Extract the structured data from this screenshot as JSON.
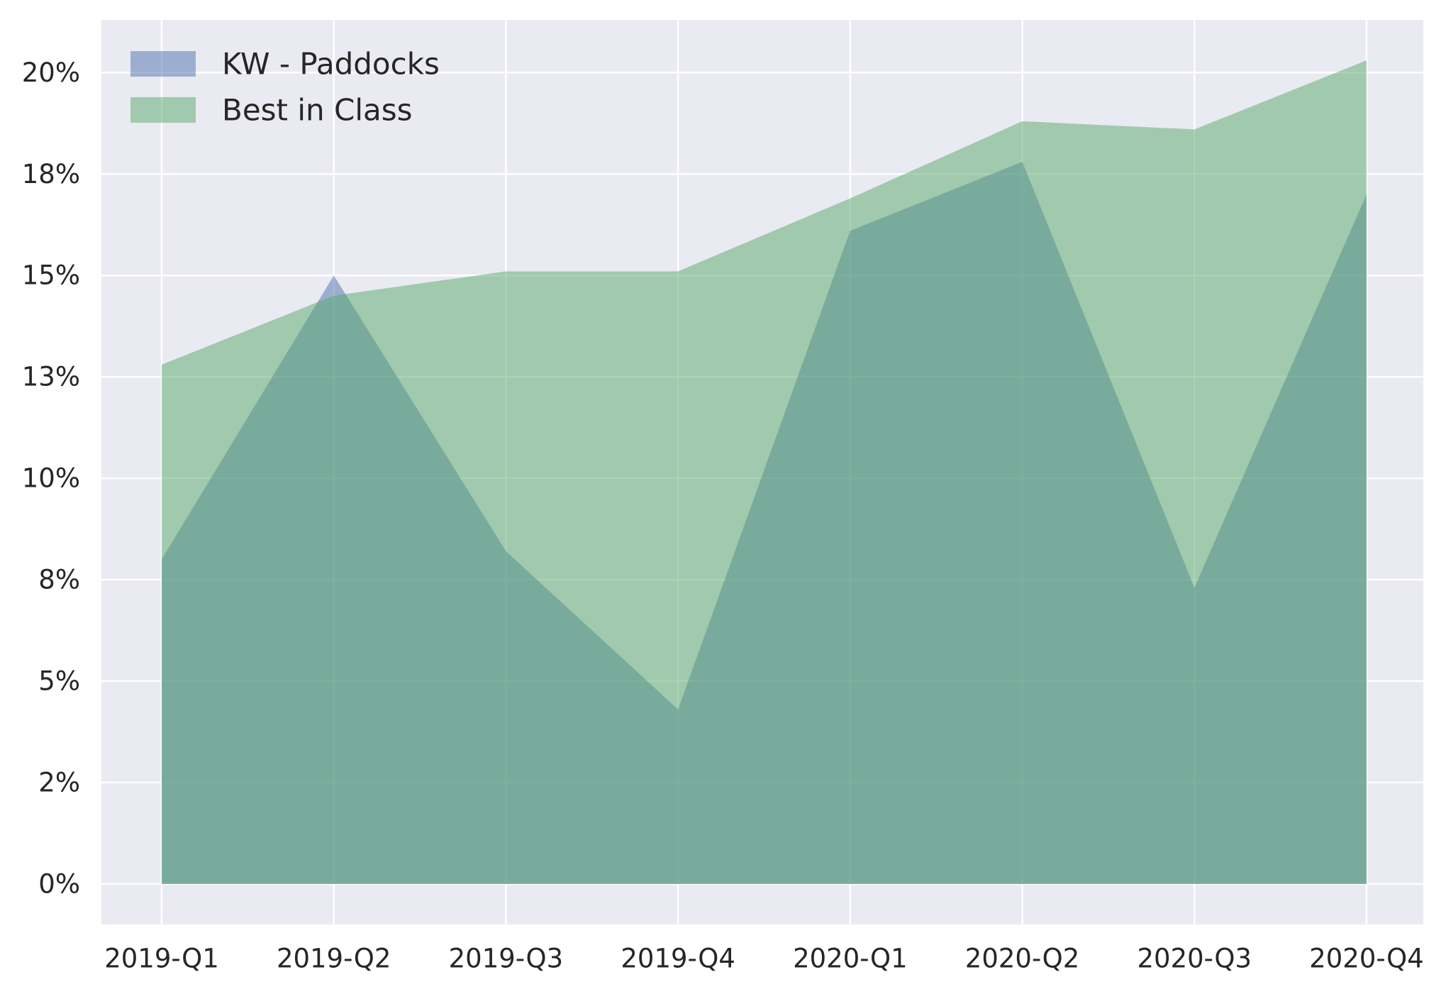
{
  "chart_data": {
    "type": "area",
    "categories": [
      "2019-Q1",
      "2019-Q2",
      "2019-Q3",
      "2019-Q4",
      "2020-Q1",
      "2020-Q2",
      "2020-Q3",
      "2020-Q4"
    ],
    "series": [
      {
        "name": "KW - Paddocks",
        "color": "#4c72b0",
        "values": [
          0.08,
          0.15,
          0.082,
          0.043,
          0.161,
          0.178,
          0.073,
          0.17
        ]
      },
      {
        "name": "Best in Class",
        "color": "#55a868",
        "values": [
          0.128,
          0.145,
          0.151,
          0.151,
          0.169,
          0.188,
          0.186,
          0.203
        ]
      }
    ],
    "y_ticks": [
      0,
      0.025,
      0.05,
      0.075,
      0.1,
      0.125,
      0.15,
      0.175,
      0.2
    ],
    "y_tick_labels": [
      "0%",
      "2%",
      "5%",
      "8%",
      "10%",
      "13%",
      "15%",
      "18%",
      "20%"
    ],
    "ylim": [
      -0.01,
      0.213
    ],
    "ylabel": "",
    "xlabel": "",
    "title": "",
    "grid": true,
    "legend_position": "top-left",
    "background_color": "#eaeaf2",
    "grid_color": "#ffffff",
    "fill_alpha": 0.5
  }
}
